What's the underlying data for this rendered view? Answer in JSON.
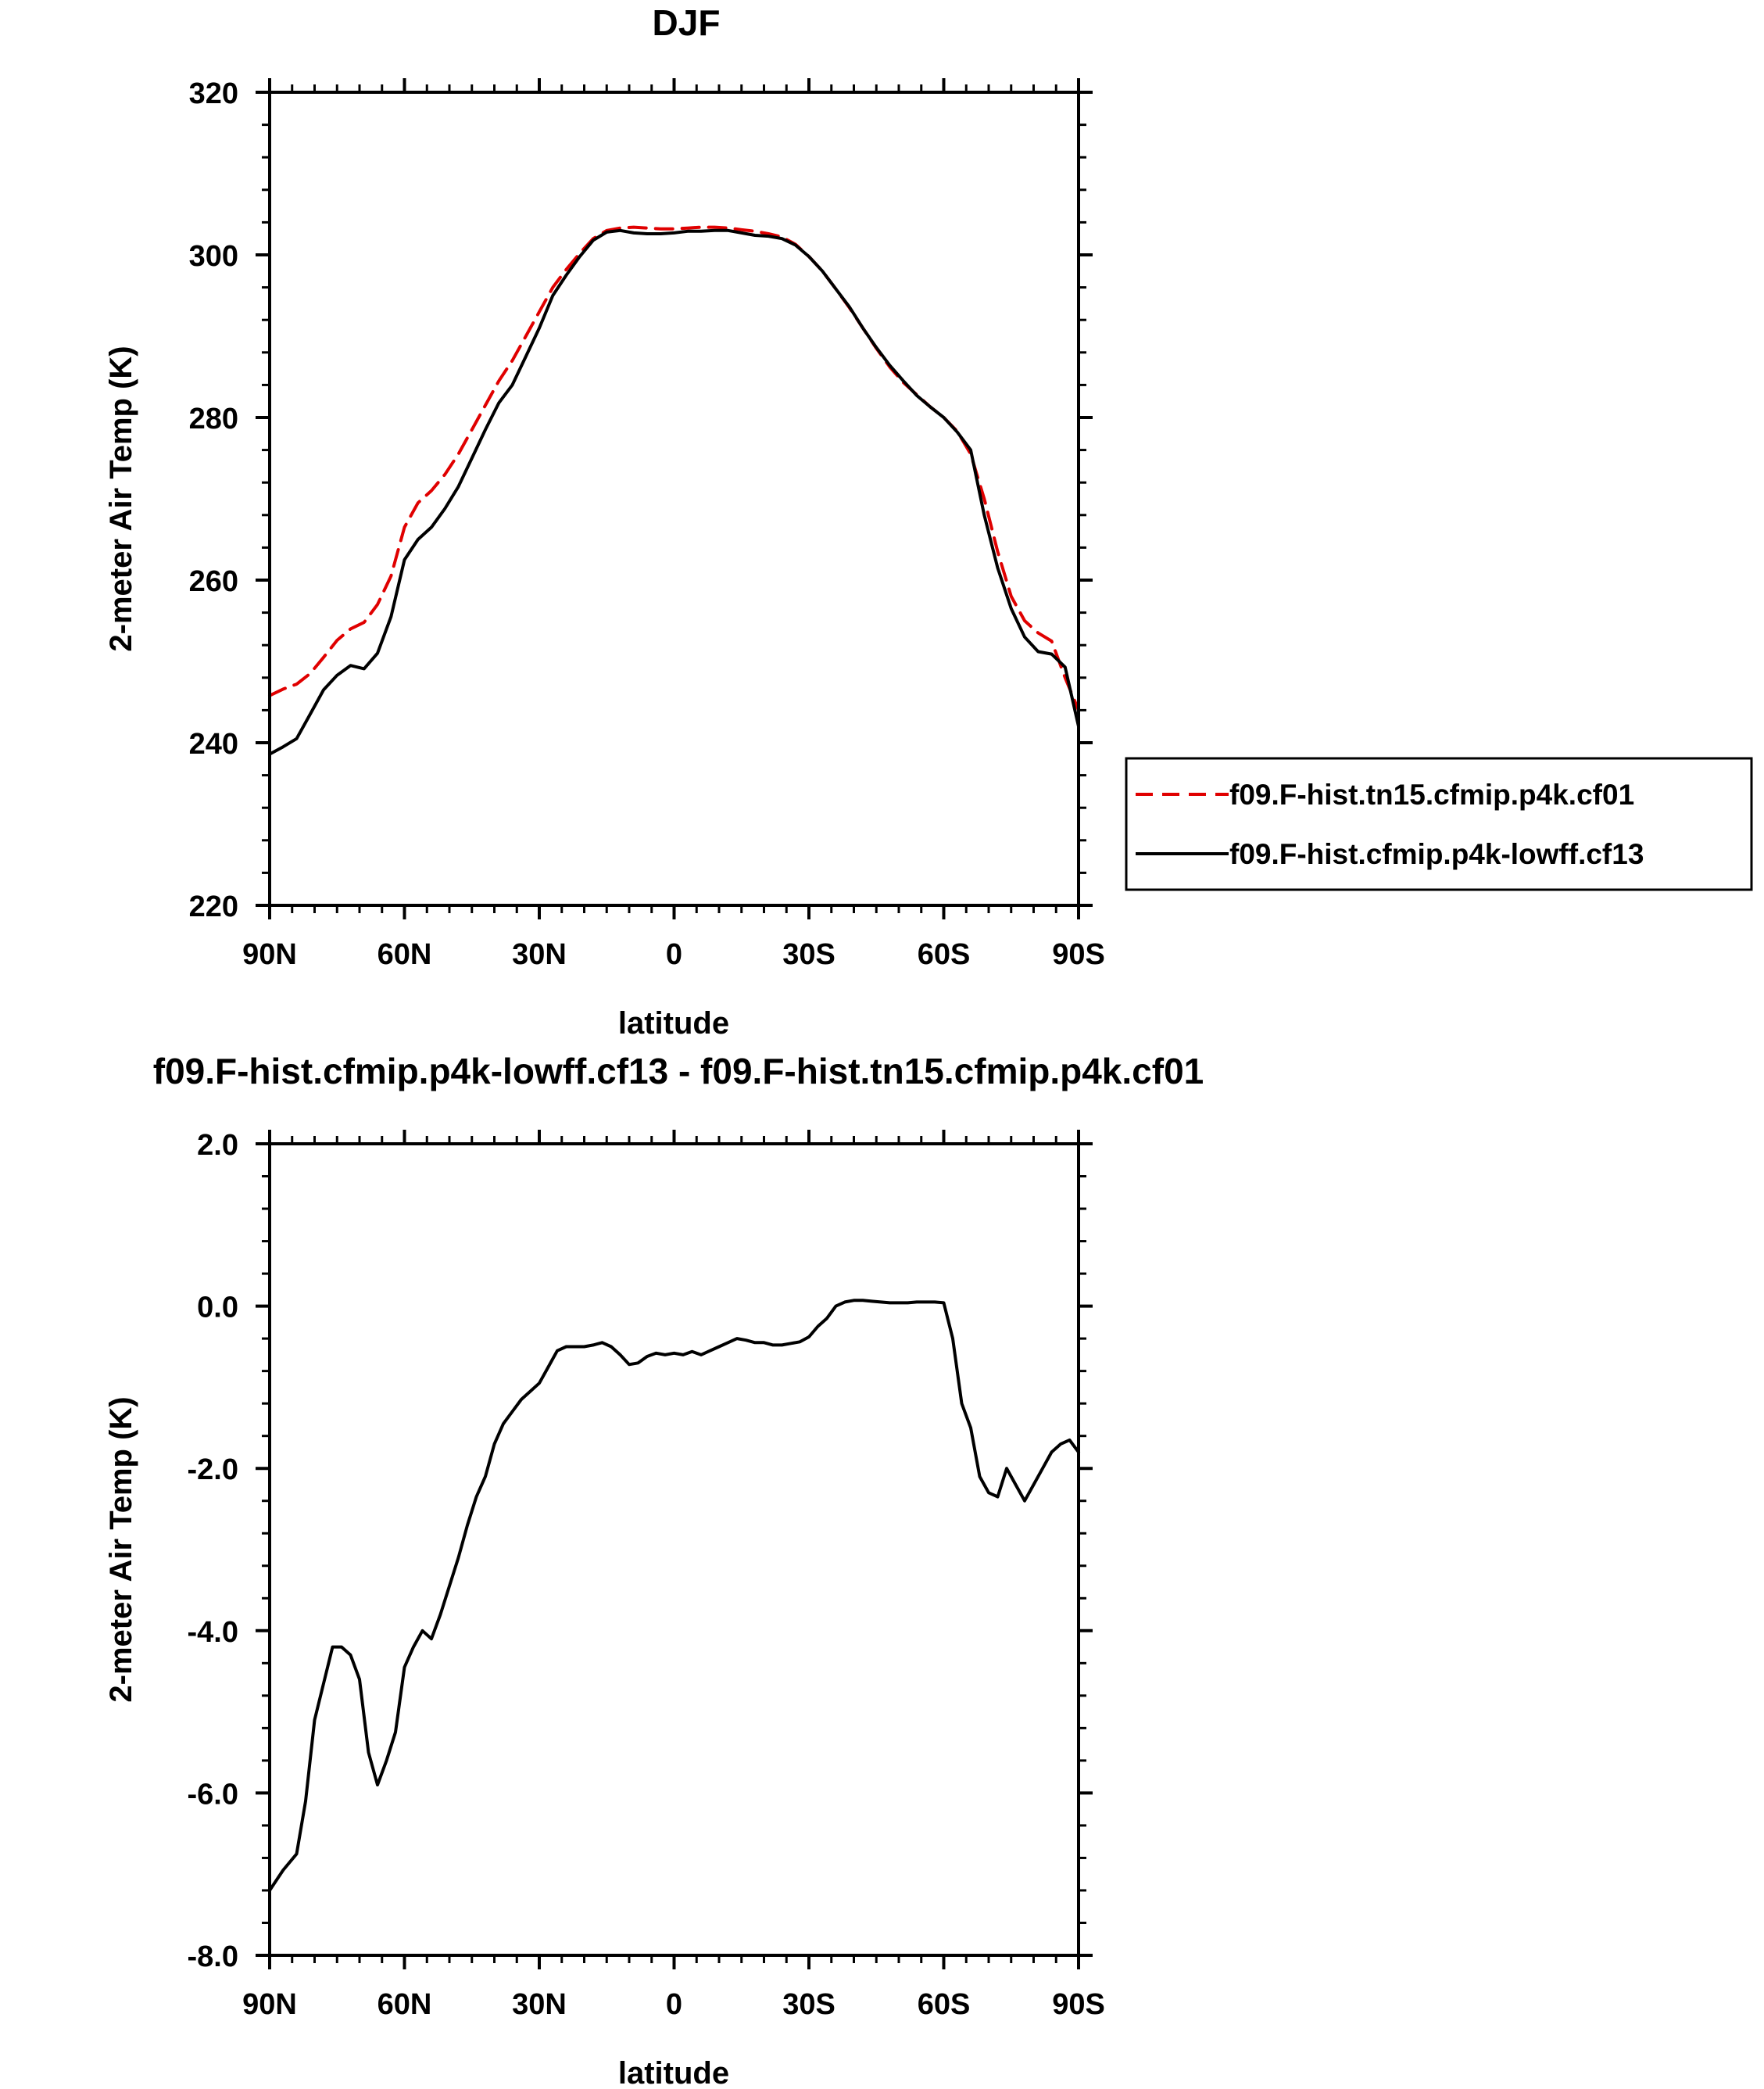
{
  "chart_data": [
    {
      "type": "line",
      "title": "DJF",
      "xlabel": "latitude",
      "ylabel": "2-meter Air Temp (K)",
      "xlim": [
        90,
        -90
      ],
      "ylim": [
        220,
        320
      ],
      "x_ticks": [
        90,
        60,
        30,
        0,
        -30,
        -60,
        -90
      ],
      "x_tick_labels": [
        "90N",
        "60N",
        "30N",
        "0",
        "30S",
        "60S",
        "90S"
      ],
      "y_ticks": [
        220,
        240,
        260,
        280,
        300,
        320
      ],
      "y_tick_labels": [
        "220",
        "240",
        "260",
        "280",
        "300",
        "320"
      ],
      "grid": false,
      "legend": "outside-right",
      "series": [
        {
          "name": "f09.F-hist.tn15.cfmip.p4k.cf01",
          "color": "#e00000",
          "style": "dashed",
          "x": [
            90,
            87,
            84,
            81,
            78,
            75,
            72,
            69,
            66,
            63,
            60,
            57,
            54,
            51,
            48,
            45,
            42,
            39,
            36,
            33,
            30,
            27,
            24,
            21,
            18,
            15,
            12,
            9,
            6,
            3,
            0,
            -3,
            -6,
            -9,
            -12,
            -15,
            -18,
            -21,
            -24,
            -27,
            -30,
            -33,
            -36,
            -39,
            -42,
            -45,
            -48,
            -51,
            -54,
            -57,
            -60,
            -63,
            -66,
            -69,
            -72,
            -75,
            -78,
            -81,
            -84,
            -87,
            -90
          ],
          "y": [
            245.8,
            246.6,
            247.2,
            248.5,
            250.5,
            252.6,
            254.0,
            254.8,
            257.0,
            260.5,
            266.5,
            269.5,
            271.0,
            273.0,
            275.5,
            278.5,
            281.5,
            284.5,
            287.0,
            290.0,
            293.0,
            296.0,
            298.2,
            300.2,
            302.0,
            303.0,
            303.3,
            303.4,
            303.3,
            303.2,
            303.2,
            303.3,
            303.4,
            303.4,
            303.3,
            303.1,
            302.9,
            302.6,
            302.2,
            301.3,
            299.8,
            298.0,
            295.8,
            293.5,
            291.0,
            288.5,
            286.2,
            284.3,
            282.8,
            281.3,
            280.0,
            278.3,
            275.5,
            270.0,
            263.5,
            258.0,
            255.0,
            253.5,
            252.5,
            248.0,
            244.0
          ]
        },
        {
          "name": "f09.F-hist.cfmip.p4k-lowff.cf13",
          "color": "#000000",
          "style": "solid",
          "x": [
            90,
            87,
            84,
            81,
            78,
            75,
            72,
            69,
            66,
            63,
            60,
            57,
            54,
            51,
            48,
            45,
            42,
            39,
            36,
            33,
            30,
            27,
            24,
            21,
            18,
            15,
            12,
            9,
            6,
            3,
            0,
            -3,
            -6,
            -9,
            -12,
            -15,
            -18,
            -21,
            -24,
            -27,
            -30,
            -33,
            -36,
            -39,
            -42,
            -45,
            -48,
            -51,
            -54,
            -57,
            -60,
            -63,
            -66,
            -69,
            -72,
            -75,
            -78,
            -81,
            -84,
            -87,
            -90
          ],
          "y": [
            238.6,
            239.5,
            240.5,
            243.5,
            246.5,
            248.3,
            249.5,
            249.1,
            251.0,
            255.5,
            262.5,
            265.0,
            266.5,
            268.8,
            271.5,
            275.0,
            278.5,
            281.8,
            284.0,
            287.5,
            291.0,
            295.0,
            297.5,
            299.8,
            301.8,
            302.8,
            303.0,
            302.7,
            302.6,
            302.6,
            302.7,
            302.9,
            302.9,
            303.0,
            303.0,
            302.7,
            302.4,
            302.3,
            302.0,
            301.2,
            299.8,
            298.0,
            295.8,
            293.6,
            291.0,
            288.6,
            286.4,
            284.5,
            282.7,
            281.3,
            280.0,
            278.2,
            276.0,
            268.0,
            261.5,
            256.5,
            253.0,
            251.2,
            250.9,
            249.3,
            242.0
          ]
        }
      ]
    },
    {
      "type": "line",
      "title": "f09.F-hist.cfmip.p4k-lowff.cf13 - f09.F-hist.tn15.cfmip.p4k.cf01",
      "xlabel": "latitude",
      "ylabel": "2-meter Air Temp (K)",
      "xlim": [
        90,
        -90
      ],
      "ylim": [
        -8.0,
        2.0
      ],
      "x_ticks": [
        90,
        60,
        30,
        0,
        -30,
        -60,
        -90
      ],
      "x_tick_labels": [
        "90N",
        "60N",
        "30N",
        "0",
        "30S",
        "60S",
        "90S"
      ],
      "y_ticks": [
        -8,
        -6,
        -4,
        -2,
        0,
        2
      ],
      "y_tick_labels": [
        "-8.0",
        "-6.0",
        "-4.0",
        "-2.0",
        "0.0",
        "2.0"
      ],
      "grid": false,
      "series": [
        {
          "color": "#000000",
          "style": "solid",
          "x": [
            90,
            87,
            84,
            82,
            80,
            78,
            76,
            74,
            72,
            70,
            68,
            66,
            64,
            62,
            60,
            58,
            56,
            54,
            52,
            50,
            48,
            46,
            44,
            42,
            40,
            38,
            36,
            34,
            32,
            30,
            28,
            26,
            24,
            22,
            20,
            18,
            16,
            14,
            12,
            10,
            8,
            6,
            4,
            2,
            0,
            -2,
            -4,
            -6,
            -8,
            -10,
            -12,
            -14,
            -16,
            -18,
            -20,
            -22,
            -24,
            -26,
            -28,
            -30,
            -32,
            -34,
            -36,
            -38,
            -40,
            -42,
            -44,
            -46,
            -48,
            -50,
            -52,
            -54,
            -56,
            -58,
            -60,
            -62,
            -64,
            -66,
            -68,
            -70,
            -72,
            -74,
            -76,
            -78,
            -80,
            -82,
            -84,
            -86,
            -88,
            -90
          ],
          "y": [
            -7.2,
            -6.95,
            -6.75,
            -6.1,
            -5.1,
            -4.65,
            -4.2,
            -4.2,
            -4.3,
            -4.6,
            -5.5,
            -5.9,
            -5.6,
            -5.25,
            -4.45,
            -4.2,
            -4.0,
            -4.1,
            -3.8,
            -3.45,
            -3.1,
            -2.7,
            -2.35,
            -2.1,
            -1.7,
            -1.45,
            -1.3,
            -1.15,
            -1.05,
            -0.95,
            -0.75,
            -0.55,
            -0.5,
            -0.5,
            -0.5,
            -0.48,
            -0.45,
            -0.5,
            -0.6,
            -0.72,
            -0.7,
            -0.62,
            -0.58,
            -0.6,
            -0.58,
            -0.6,
            -0.56,
            -0.6,
            -0.55,
            -0.5,
            -0.45,
            -0.4,
            -0.42,
            -0.45,
            -0.45,
            -0.48,
            -0.48,
            -0.46,
            -0.44,
            -0.38,
            -0.25,
            -0.15,
            0.0,
            0.05,
            0.07,
            0.07,
            0.06,
            0.05,
            0.04,
            0.04,
            0.04,
            0.05,
            0.05,
            0.05,
            0.04,
            -0.4,
            -1.2,
            -1.5,
            -2.1,
            -2.3,
            -2.35,
            -2.0,
            -2.2,
            -2.4,
            -2.2,
            -2.0,
            -1.8,
            -1.7,
            -1.65,
            -1.8
          ]
        }
      ]
    }
  ]
}
